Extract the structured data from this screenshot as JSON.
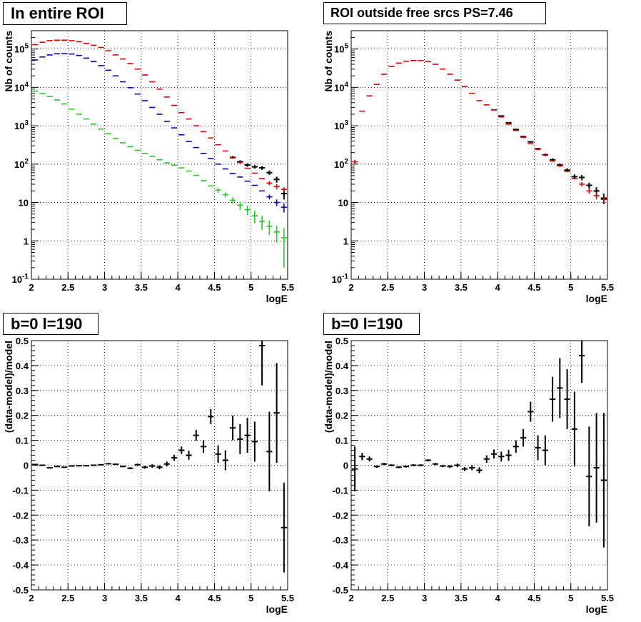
{
  "colors": {
    "data": "#000000",
    "model": "#e00000",
    "component_blue": "#0000cc",
    "component_green": "#22cc22",
    "grid": "#000000"
  },
  "chart_data": [
    {
      "type": "scatter",
      "title": "In entire ROI",
      "xlabel": "logE",
      "ylabel": "Nb of counts",
      "xlim": [
        2,
        5.5
      ],
      "ylim": [
        0.1,
        300000
      ],
      "yscale": "log",
      "grid": true,
      "x_ticks": [
        "2",
        "2.5",
        "3",
        "3.5",
        "4",
        "4.5",
        "5",
        "5.5"
      ],
      "y_ticks": [
        "10^-1",
        "1",
        "10",
        "10^2",
        "10^3",
        "10^4",
        "10^5"
      ],
      "bin_width": 0.1,
      "series": [
        {
          "name": "",
          "color": "#000000",
          "style": "errorbar",
          "x": [
            4.75,
            4.85,
            4.95,
            5.05,
            5.15,
            5.25,
            5.35,
            5.45
          ],
          "y": [
            150,
            115,
            95,
            85,
            80,
            60,
            40,
            17
          ],
          "err": [
            12,
            11,
            10,
            9,
            9,
            8,
            7,
            5
          ]
        },
        {
          "name": "",
          "color": "#e00000",
          "style": "errorbar",
          "x": [
            2.05,
            2.15,
            2.25,
            2.35,
            2.45,
            2.55,
            2.65,
            2.75,
            2.85,
            2.95,
            3.05,
            3.15,
            3.25,
            3.35,
            3.45,
            3.55,
            3.65,
            3.75,
            3.85,
            3.95,
            4.05,
            4.15,
            4.25,
            4.35,
            4.45,
            4.55,
            4.65,
            4.75,
            4.85,
            4.95,
            5.05,
            5.15,
            5.25,
            5.35,
            5.45
          ],
          "y": [
            130000,
            150000,
            165000,
            170000,
            170000,
            165000,
            155000,
            140000,
            125000,
            110000,
            90000,
            70000,
            55000,
            42000,
            30000,
            21000,
            14000,
            9000,
            5600,
            3400,
            2200,
            1500,
            1000,
            700,
            480,
            320,
            220,
            145,
            110,
            78,
            58,
            42,
            32,
            26,
            22
          ],
          "err": [
            0,
            0,
            0,
            0,
            0,
            0,
            0,
            0,
            0,
            0,
            0,
            0,
            0,
            0,
            0,
            0,
            0,
            0,
            0,
            0,
            0,
            0,
            0,
            0,
            0,
            0,
            0,
            0,
            0,
            0,
            0,
            0,
            4,
            4,
            3
          ]
        },
        {
          "name": "",
          "color": "#0000cc",
          "style": "errorbar",
          "x": [
            2.05,
            2.15,
            2.25,
            2.35,
            2.45,
            2.55,
            2.65,
            2.75,
            2.85,
            2.95,
            3.05,
            3.15,
            3.25,
            3.35,
            3.45,
            3.55,
            3.65,
            3.75,
            3.85,
            3.95,
            4.05,
            4.15,
            4.25,
            4.35,
            4.45,
            4.55,
            4.65,
            4.75,
            4.85,
            4.95,
            5.05,
            5.15,
            5.25,
            5.35,
            5.45
          ],
          "y": [
            52000,
            62000,
            70000,
            75000,
            76000,
            74000,
            68000,
            58000,
            47000,
            37000,
            28000,
            20000,
            14000,
            9800,
            6700,
            4500,
            3000,
            2000,
            1300,
            880,
            580,
            390,
            270,
            190,
            140,
            100,
            75,
            57,
            46,
            36,
            28,
            20,
            14,
            10,
            7.5
          ],
          "err": [
            0,
            0,
            0,
            0,
            0,
            0,
            0,
            0,
            0,
            0,
            0,
            0,
            0,
            0,
            0,
            0,
            0,
            0,
            0,
            0,
            0,
            0,
            0,
            0,
            0,
            0,
            0,
            0,
            0,
            0,
            0,
            0,
            2,
            2,
            2
          ]
        },
        {
          "name": "",
          "color": "#22cc22",
          "style": "errorbar",
          "x": [
            2.05,
            2.15,
            2.25,
            2.35,
            2.45,
            2.55,
            2.65,
            2.75,
            2.85,
            2.95,
            3.05,
            3.15,
            3.25,
            3.35,
            3.45,
            3.55,
            3.65,
            3.75,
            3.85,
            3.95,
            4.05,
            4.15,
            4.25,
            4.35,
            4.45,
            4.55,
            4.65,
            4.75,
            4.85,
            4.95,
            5.05,
            5.15,
            5.25,
            5.35,
            5.45
          ],
          "y": [
            8000,
            7000,
            5800,
            4700,
            3700,
            2700,
            2000,
            1500,
            1100,
            820,
            620,
            470,
            360,
            285,
            230,
            190,
            160,
            130,
            108,
            94,
            80,
            66,
            51,
            37,
            27,
            21,
            16,
            11.5,
            8.5,
            6.5,
            4.5,
            3.2,
            2.4,
            1.7,
            1.2
          ],
          "err": [
            0,
            0,
            0,
            0,
            0,
            0,
            0,
            0,
            0,
            0,
            0,
            0,
            0,
            0,
            0,
            0,
            0,
            0,
            0,
            0,
            0,
            0,
            0,
            0,
            0,
            3,
            2.5,
            2.2,
            2,
            1.8,
            1.6,
            1.3,
            1,
            0.8,
            1
          ]
        }
      ]
    },
    {
      "type": "scatter",
      "title": "ROI outside free srcs PS=7.46",
      "xlabel": "logE",
      "ylabel": "Nb of counts",
      "xlim": [
        2,
        5.5
      ],
      "ylim": [
        0.1,
        300000
      ],
      "yscale": "log",
      "grid": true,
      "x_ticks": [
        "2",
        "2.5",
        "3",
        "3.5",
        "4",
        "4.5",
        "5",
        "5.5"
      ],
      "y_ticks": [
        "10^-1",
        "1",
        "10",
        "10^2",
        "10^3",
        "10^4",
        "10^5"
      ],
      "bin_width": 0.1,
      "series": [
        {
          "name": "",
          "color": "#000000",
          "style": "errorbar",
          "x": [
            3.95,
            4.05,
            4.15,
            4.25,
            4.35,
            4.45,
            4.55,
            4.65,
            4.75,
            4.85,
            4.95,
            5.05,
            5.15,
            5.25,
            5.35,
            5.45
          ],
          "y": [
            2600,
            1800,
            1200,
            800,
            520,
            380,
            250,
            175,
            130,
            95,
            70,
            47,
            45,
            28,
            20,
            13
          ],
          "err": [
            50,
            40,
            35,
            28,
            23,
            20,
            16,
            13,
            11,
            10,
            8,
            7,
            7,
            5,
            5,
            4
          ]
        },
        {
          "name": "",
          "color": "#e00000",
          "style": "errorbar",
          "x": [
            2.05,
            2.15,
            2.25,
            2.35,
            2.45,
            2.55,
            2.65,
            2.75,
            2.85,
            2.95,
            3.05,
            3.15,
            3.25,
            3.35,
            3.45,
            3.55,
            3.65,
            3.75,
            3.85,
            3.95,
            4.05,
            4.15,
            4.25,
            4.35,
            4.45,
            4.55,
            4.65,
            4.75,
            4.85,
            4.95,
            5.05,
            5.15,
            5.25,
            5.35,
            5.45
          ],
          "y": [
            115,
            2400,
            6000,
            12000,
            22000,
            35000,
            43000,
            48000,
            50000,
            50000,
            47000,
            40000,
            30000,
            22000,
            15500,
            10500,
            7000,
            4500,
            3500,
            2600,
            1700,
            1100,
            750,
            500,
            340,
            240,
            170,
            120,
            90,
            65,
            42,
            30,
            20,
            15,
            12
          ],
          "err": [
            15,
            0,
            0,
            0,
            0,
            0,
            0,
            0,
            0,
            0,
            0,
            0,
            0,
            0,
            0,
            0,
            0,
            0,
            0,
            0,
            0,
            0,
            0,
            0,
            0,
            0,
            0,
            0,
            0,
            0,
            0,
            4,
            3,
            3,
            3
          ]
        }
      ]
    },
    {
      "type": "scatter",
      "title": "b=0 l=190",
      "xlabel": "logE",
      "ylabel": "(data-model)/model",
      "xlim": [
        2,
        5.5
      ],
      "ylim": [
        -0.5,
        0.5
      ],
      "grid": true,
      "x_ticks": [
        "2",
        "2.5",
        "3",
        "3.5",
        "4",
        "4.5",
        "5",
        "5.5"
      ],
      "y_ticks": [
        "-0.5",
        "-0.4",
        "-0.3",
        "-0.2",
        "-0.1",
        "0",
        "0.1",
        "0.2",
        "0.3",
        "0.4",
        "0.5"
      ],
      "bin_width": 0.1,
      "series": [
        {
          "name": "",
          "color": "#000000",
          "style": "errorbar",
          "x": [
            2.05,
            2.15,
            2.25,
            2.35,
            2.45,
            2.55,
            2.65,
            2.75,
            2.85,
            2.95,
            3.05,
            3.15,
            3.25,
            3.35,
            3.45,
            3.55,
            3.65,
            3.75,
            3.85,
            3.95,
            4.05,
            4.15,
            4.25,
            4.35,
            4.45,
            4.55,
            4.65,
            4.75,
            4.85,
            4.95,
            5.05,
            5.15,
            5.25,
            5.35,
            5.45
          ],
          "y": [
            0.003,
            0,
            -0.01,
            -0.005,
            -0.008,
            -0.003,
            -0.002,
            -0.002,
            0,
            0.002,
            0.006,
            0.004,
            -0.005,
            -0.012,
            0.002,
            -0.008,
            -0.003,
            -0.008,
            0.005,
            0.03,
            0.06,
            0.04,
            0.12,
            0.075,
            0.195,
            0.045,
            0.02,
            0.15,
            0.105,
            0.12,
            0.095,
            0.48,
            0.055,
            0.21,
            -0.25
          ],
          "err": [
            0.002,
            0.002,
            0.002,
            0.002,
            0.002,
            0.002,
            0.002,
            0.002,
            0.002,
            0.002,
            0.003,
            0.003,
            0.003,
            0.004,
            0.005,
            0.006,
            0.007,
            0.008,
            0.01,
            0.012,
            0.015,
            0.018,
            0.022,
            0.025,
            0.03,
            0.035,
            0.04,
            0.05,
            0.06,
            0.07,
            0.08,
            0.16,
            0.16,
            0.2,
            0.18
          ]
        }
      ]
    },
    {
      "type": "scatter",
      "title": "b=0 l=190",
      "xlabel": "logE",
      "ylabel": "(data-model)/model",
      "xlim": [
        2,
        5.5
      ],
      "ylim": [
        -0.5,
        0.5
      ],
      "grid": true,
      "x_ticks": [
        "2",
        "2.5",
        "3",
        "3.5",
        "4",
        "4.5",
        "5",
        "5.5"
      ],
      "y_ticks": [
        "-0.5",
        "-0.4",
        "-0.3",
        "-0.2",
        "-0.1",
        "0",
        "0.1",
        "0.2",
        "0.3",
        "0.4",
        "0.5"
      ],
      "bin_width": 0.1,
      "series": [
        {
          "name": "",
          "color": "#000000",
          "style": "errorbar",
          "x": [
            2.05,
            2.15,
            2.25,
            2.35,
            2.45,
            2.55,
            2.65,
            2.75,
            2.85,
            2.95,
            3.05,
            3.15,
            3.25,
            3.35,
            3.45,
            3.55,
            3.65,
            3.75,
            3.85,
            3.95,
            4.05,
            4.15,
            4.25,
            4.35,
            4.45,
            4.55,
            4.65,
            4.75,
            4.85,
            4.95,
            5.05,
            5.15,
            5.25,
            5.35,
            5.45
          ],
          "y": [
            -0.015,
            0.035,
            0.025,
            -0.005,
            0.005,
            0,
            -0.008,
            -0.005,
            0,
            0,
            0.02,
            0.005,
            -0.003,
            -0.005,
            0,
            -0.015,
            -0.01,
            -0.02,
            0.025,
            0.045,
            0.035,
            0.04,
            0.075,
            0.11,
            0.215,
            0.07,
            0.06,
            0.265,
            0.31,
            0.265,
            0.145,
            0.44,
            -0.045,
            -0.01,
            -0.06
          ],
          "err": [
            0.09,
            0.015,
            0.01,
            0.005,
            0.005,
            0.004,
            0.004,
            0.004,
            0.004,
            0.004,
            0.005,
            0.005,
            0.005,
            0.006,
            0.007,
            0.008,
            0.01,
            0.012,
            0.015,
            0.018,
            0.02,
            0.022,
            0.025,
            0.035,
            0.04,
            0.05,
            0.06,
            0.09,
            0.12,
            0.12,
            0.15,
            0.11,
            0.2,
            0.22,
            0.27
          ]
        }
      ]
    }
  ]
}
